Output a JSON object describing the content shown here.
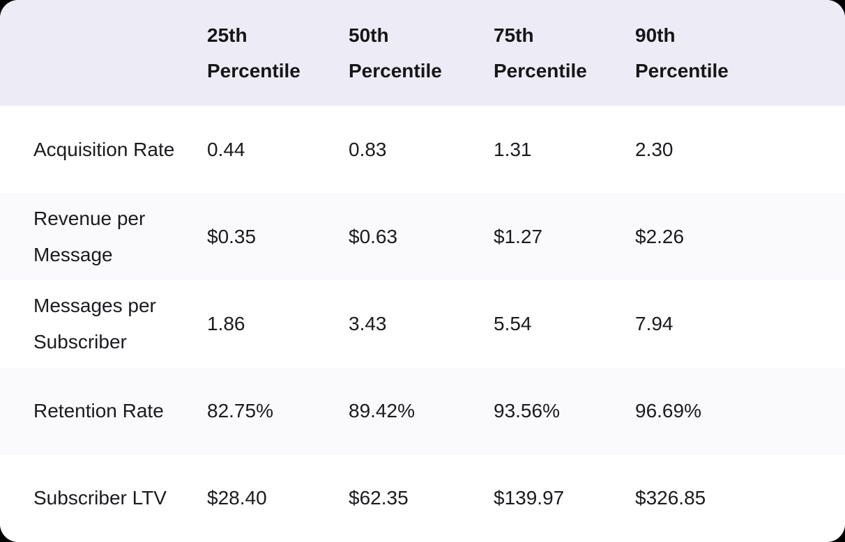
{
  "theme": {
    "page_background": "#000000",
    "card_background": "#ffffff",
    "header_background": "#edecf6",
    "alt_row_background": "#fafafc",
    "text_color": "#1b1b1f",
    "header_text_color": "#161619"
  },
  "chart_data": {
    "type": "table",
    "title": "",
    "columns": [
      "",
      "25th Percentile",
      "50th Percentile",
      "75th Percentile",
      "90th Percentile"
    ],
    "rows": [
      [
        "Acquisition Rate",
        "0.44",
        "0.83",
        "1.31",
        "2.30"
      ],
      [
        "Revenue per Message",
        "$0.35",
        "$0.63",
        "$1.27",
        "$2.26"
      ],
      [
        "Messages per Subscriber",
        "1.86",
        "3.43",
        "5.54",
        "7.94"
      ],
      [
        "Retention Rate",
        "82.75%",
        "89.42%",
        "93.56%",
        "96.69%"
      ],
      [
        "Subscriber LTV",
        "$28.40",
        "$62.35",
        "$139.97",
        "$326.85"
      ]
    ]
  }
}
